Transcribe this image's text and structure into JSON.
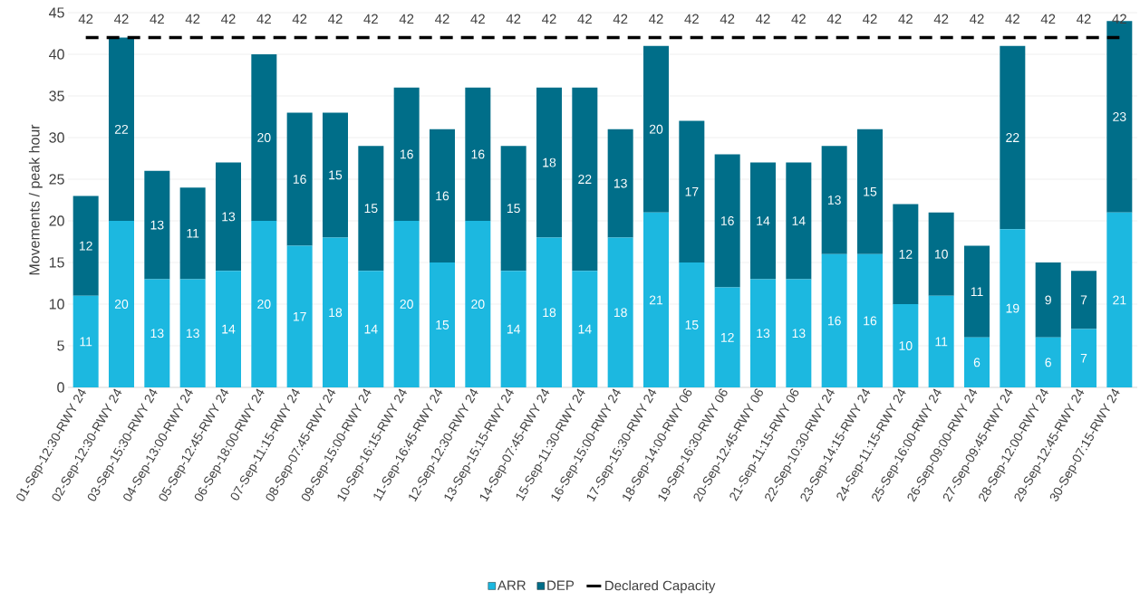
{
  "chart_data": {
    "type": "bar",
    "stacked": true,
    "categories": [
      "01-Sep-12:30-RWY 24",
      "02-Sep-12:30-RWY 24",
      "03-Sep-15:30-RWY 24",
      "04-Sep-13:00-RWY 24",
      "05-Sep-12:45-RWY 24",
      "06-Sep-18:00-RWY 24",
      "07-Sep-11:15-RWY 24",
      "08-Sep-07:45-RWY 24",
      "09-Sep-15:00-RWY 24",
      "10-Sep-16:15-RWY 24",
      "11-Sep-16:45-RWY 24",
      "12-Sep-12:30-RWY 24",
      "13-Sep-15:15-RWY 24",
      "14-Sep-07:45-RWY 24",
      "15-Sep-11:30-RWY 24",
      "16-Sep-15:00-RWY 24",
      "17-Sep-15:30-RWY 24",
      "18-Sep-14:00-RWY 06",
      "19-Sep-16:30-RWY 06",
      "20-Sep-12:45-RWY 06",
      "21-Sep-11:15-RWY 06",
      "22-Sep-10:30-RWY 24",
      "23-Sep-14:15-RWY 24",
      "24-Sep-11:15-RWY 24",
      "25-Sep-16:00-RWY 24",
      "26-Sep-09:00-RWY 24",
      "27-Sep-09:45-RWY 24",
      "28-Sep-12:00-RWY 24",
      "29-Sep-12:45-RWY 24",
      "30-Sep-07:15-RWY 24"
    ],
    "series": [
      {
        "name": "ARR",
        "color": "#1cb8e0",
        "values": [
          11,
          20,
          13,
          13,
          14,
          20,
          17,
          18,
          14,
          20,
          15,
          20,
          14,
          18,
          14,
          18,
          21,
          15,
          12,
          13,
          13,
          16,
          16,
          10,
          11,
          6,
          19,
          6,
          7,
          21
        ]
      },
      {
        "name": "DEP",
        "color": "#006e89",
        "values": [
          12,
          22,
          13,
          11,
          13,
          20,
          16,
          15,
          15,
          16,
          16,
          16,
          15,
          18,
          22,
          13,
          20,
          17,
          16,
          14,
          14,
          13,
          15,
          12,
          10,
          11,
          22,
          9,
          7,
          23
        ]
      },
      {
        "name": "Declared Capacity",
        "type": "line",
        "color": "#000000",
        "line_style": "dashed",
        "values": [
          42,
          42,
          42,
          42,
          42,
          42,
          42,
          42,
          42,
          42,
          42,
          42,
          42,
          42,
          42,
          42,
          42,
          42,
          42,
          42,
          42,
          42,
          42,
          42,
          42,
          42,
          42,
          42,
          42,
          42
        ]
      }
    ],
    "ylabel": "Movements / peak hour",
    "ylim": [
      0,
      45
    ],
    "yticks": [
      0,
      5,
      10,
      15,
      20,
      25,
      30,
      35,
      40,
      45
    ],
    "grid": "y",
    "legend": "bottom",
    "data_labels": true
  }
}
